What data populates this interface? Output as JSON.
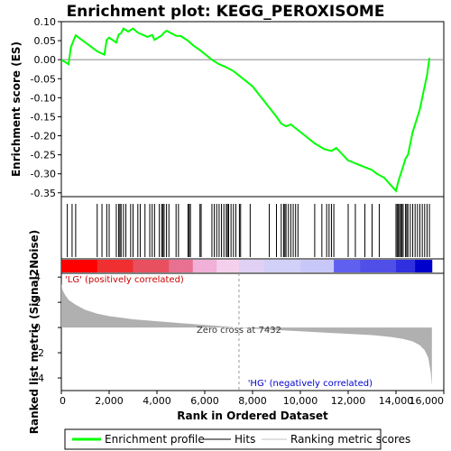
{
  "chart_data": [
    {
      "type": "line",
      "panel": "enrichment-profile",
      "title": "Enrichment plot: KEGG_PEROXISOME",
      "ylabel": "Enrichment score (ES)",
      "xlim": [
        0,
        16000
      ],
      "ylim": [
        -0.36,
        0.1
      ],
      "yticks": [
        "0.10",
        "0.05",
        "0.00",
        "-0.05",
        "-0.10",
        "-0.15",
        "-0.20",
        "-0.25",
        "-0.30",
        "-0.35"
      ],
      "ytick_values": [
        0.1,
        0.05,
        0.0,
        -0.05,
        -0.1,
        -0.15,
        -0.2,
        -0.25,
        -0.3,
        -0.35
      ],
      "series": [
        {
          "name": "Enrichment profile",
          "color": "#00ff00",
          "x": [
            0,
            300,
            400,
            600,
            1500,
            1800,
            1900,
            2000,
            2300,
            2400,
            2500,
            2600,
            2800,
            3000,
            3200,
            3600,
            3800,
            3900,
            4200,
            4300,
            4400,
            4800,
            5000,
            5300,
            5500,
            5800,
            6000,
            6300,
            6600,
            6900,
            7200,
            7500,
            8000,
            8500,
            9000,
            9200,
            9400,
            9600,
            9800,
            10200,
            10600,
            11000,
            11300,
            11500,
            12000,
            12200,
            12400,
            12600,
            12800,
            13000,
            13200,
            13500,
            14000,
            14100,
            14200,
            14300,
            14400,
            14500,
            14600,
            14700,
            14800,
            14900,
            15000,
            15100,
            15200,
            15300,
            15400
          ],
          "y": [
            0.0,
            -0.012,
            0.033,
            0.064,
            0.022,
            0.013,
            0.052,
            0.058,
            0.045,
            0.066,
            0.07,
            0.082,
            0.074,
            0.082,
            0.071,
            0.06,
            0.065,
            0.052,
            0.064,
            0.071,
            0.076,
            0.063,
            0.062,
            0.05,
            0.038,
            0.025,
            0.015,
            0.0,
            -0.012,
            -0.02,
            -0.03,
            -0.045,
            -0.07,
            -0.11,
            -0.15,
            -0.168,
            -0.175,
            -0.17,
            -0.18,
            -0.2,
            -0.22,
            -0.235,
            -0.24,
            -0.232,
            -0.265,
            -0.27,
            -0.275,
            -0.28,
            -0.285,
            -0.29,
            -0.3,
            -0.31,
            -0.345,
            -0.32,
            -0.3,
            -0.28,
            -0.26,
            -0.25,
            -0.22,
            -0.19,
            -0.17,
            -0.15,
            -0.13,
            -0.1,
            -0.07,
            -0.04,
            0.005
          ]
        }
      ]
    },
    {
      "type": "rug",
      "panel": "hits",
      "series": [
        {
          "name": "Hits",
          "x": [
            250,
            450,
            600,
            1500,
            1700,
            1900,
            2000,
            2300,
            2400,
            2450,
            2500,
            2600,
            2700,
            2900,
            3000,
            3200,
            3300,
            3500,
            3700,
            3800,
            3900,
            4100,
            4200,
            4250,
            4300,
            4400,
            4500,
            4800,
            4900,
            5300,
            5350,
            5400,
            5800,
            5850,
            6300,
            6400,
            6500,
            6600,
            6700,
            6800,
            6900,
            6950,
            7000,
            7100,
            7200,
            7300,
            7450,
            7500,
            7900,
            8700,
            9000,
            9200,
            9300,
            9350,
            9400,
            9500,
            9600,
            9700,
            9800,
            9900,
            10600,
            10900,
            11100,
            11200,
            11300,
            11400,
            12000,
            12300,
            12700,
            13000,
            13300,
            14000,
            14050,
            14100,
            14150,
            14200,
            14250,
            14300,
            14400,
            14450,
            14500,
            14600,
            14700,
            14800,
            14900,
            15000,
            15100,
            15200,
            15300,
            15400
          ]
        }
      ]
    },
    {
      "type": "heatmap",
      "panel": "rank-colorbar",
      "x": [
        0,
        1500,
        3000,
        4500,
        5500,
        6500,
        7432,
        8500,
        10000,
        11400,
        12500,
        14000,
        14800,
        15500
      ],
      "colors": [
        "#ff0000",
        "#f03030",
        "#e85060",
        "#e87090",
        "#f0b0d8",
        "#f4d0ec",
        "#e0d0f4",
        "#d0d0f8",
        "#c8c8f8",
        "#6060f0",
        "#5050e8",
        "#3030e0",
        "#0000cc",
        "#0000aa"
      ]
    },
    {
      "type": "area",
      "panel": "ranked-list-metric",
      "ylabel": "Ranked list metric (Signal2Noise)",
      "xlabel": "Rank in Ordered Dataset",
      "xlim": [
        0,
        16000
      ],
      "ylim": [
        -5,
        4.3
      ],
      "xticks": [
        "0",
        "2,000",
        "4,000",
        "6,000",
        "8,000",
        "10,000",
        "12,000",
        "14,000",
        "16,000"
      ],
      "xtick_values": [
        0,
        2000,
        4000,
        6000,
        8000,
        10000,
        12000,
        14000,
        16000
      ],
      "yticks": [
        "4",
        "2",
        "0",
        "-2",
        "-4"
      ],
      "ytick_values": [
        4,
        2,
        0,
        -2,
        -4
      ],
      "color": "#b0b0b0",
      "x": [
        0,
        50,
        150,
        300,
        600,
        1000,
        1500,
        2000,
        3000,
        4000,
        5000,
        6000,
        7000,
        7432,
        8000,
        9000,
        10000,
        11000,
        12000,
        13000,
        13800,
        14300,
        14700,
        15000,
        15200,
        15350,
        15450,
        15500
      ],
      "y": [
        3.5,
        3.0,
        2.6,
        2.2,
        1.8,
        1.4,
        1.1,
        0.9,
        0.65,
        0.5,
        0.35,
        0.2,
        0.06,
        0.0,
        -0.08,
        -0.2,
        -0.3,
        -0.4,
        -0.5,
        -0.6,
        -0.75,
        -0.9,
        -1.1,
        -1.4,
        -1.8,
        -2.4,
        -3.5,
        -4.6
      ],
      "zero_cross_label": "Zero cross at 7432",
      "zero_cross_x": 7432,
      "pos_label": "'LG' (positively correlated)",
      "neg_label": "'HG' (negatively correlated)"
    }
  ],
  "legend": {
    "items": [
      {
        "label": "Enrichment profile",
        "color": "#00ff00"
      },
      {
        "label": "Hits",
        "color": "#000000"
      },
      {
        "label": "Ranking metric scores",
        "color": "#c0c0c0"
      }
    ]
  }
}
